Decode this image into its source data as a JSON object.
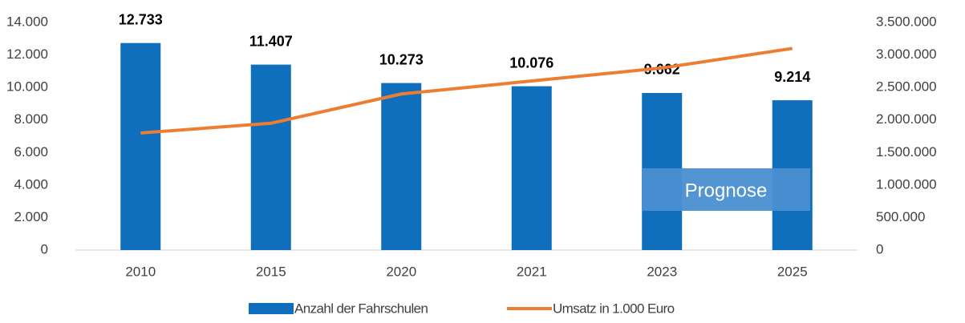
{
  "chart_data": {
    "type": "bar",
    "categories": [
      "2010",
      "2015",
      "2020",
      "2021",
      "2023",
      "2025"
    ],
    "series": [
      {
        "name": "Anzahl der Fahrschulen",
        "type": "bar",
        "color": "#0f6fbd",
        "values": [
          12733,
          11407,
          10273,
          10076,
          9662,
          9214
        ],
        "value_labels": [
          "12.733",
          "11.407",
          "10.273",
          "10.076",
          "9.662",
          "9.214"
        ]
      },
      {
        "name": "Umsatz in 1.000 Euro",
        "type": "line",
        "color": "#ed7d31",
        "axis": "y2",
        "values": [
          1800000,
          1950000,
          2400000,
          2600000,
          2800000,
          3100000
        ]
      }
    ],
    "ylim": [
      0,
      14000
    ],
    "yticks": [
      0,
      {
        "value": 2000,
        "label": "2.000"
      },
      {
        "value": 4000,
        "label": "4.000"
      },
      {
        "value": 6000,
        "label": "6.000"
      },
      {
        "value": 8000,
        "label": "8.000"
      },
      {
        "value": 10000,
        "label": "10.000"
      },
      {
        "value": 12000,
        "label": "12.000"
      },
      {
        "value": 14000,
        "label": "14.000"
      }
    ],
    "y2lim": [
      0,
      3500000
    ],
    "y2ticks": [
      0,
      {
        "value": 500000,
        "label": "500.000"
      },
      {
        "value": 1000000,
        "label": "1.000.000"
      },
      {
        "value": 1500000,
        "label": "1.500.000"
      },
      {
        "value": 2000000,
        "label": "2.000.000"
      },
      {
        "value": 2500000,
        "label": "2.500.000"
      },
      {
        "value": 3000000,
        "label": "3.000.000"
      },
      {
        "value": 3500000,
        "label": "3.500.000"
      }
    ],
    "grid": false,
    "annotation": "Prognose",
    "legend": "bottom"
  }
}
